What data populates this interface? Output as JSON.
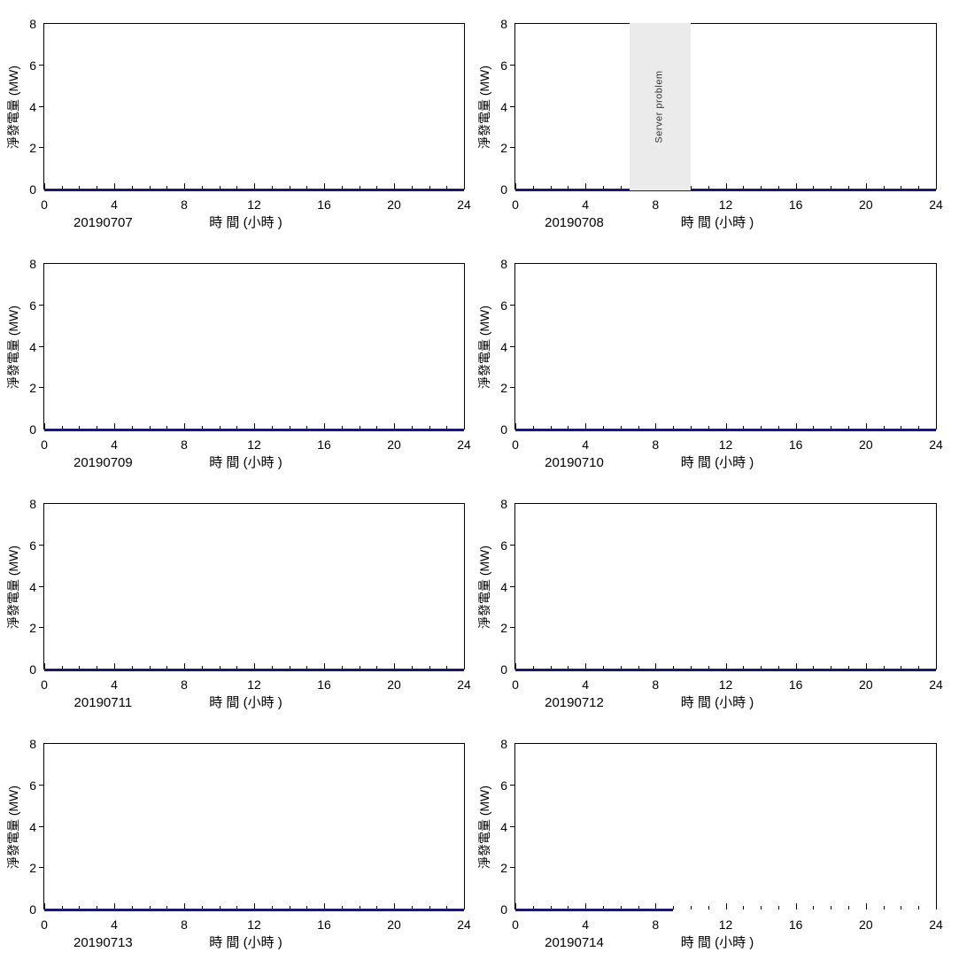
{
  "chart_data": {
    "type": "line",
    "layout": "4x2-grid-of-daily-charts",
    "shared": {
      "xlabel": "時 間 (小時 )",
      "ylabel": "淨發電量 (MW)",
      "xlim": [
        0,
        24
      ],
      "ylim": [
        0,
        8
      ],
      "x_major_ticks": [
        0,
        4,
        8,
        12,
        16,
        20,
        24
      ],
      "x_minor_tick_step": 1,
      "y_ticks": [
        0,
        2,
        4,
        6,
        8
      ],
      "grid": false,
      "legend": "none",
      "series_name": "淨發電量",
      "line_color": "#191970",
      "band_color": "#ebebeb"
    },
    "charts": [
      {
        "date": "20190707",
        "x_span": [
          0,
          24
        ],
        "value_mw": 0,
        "annotation": null
      },
      {
        "date": "20190708",
        "x_span": [
          0,
          24
        ],
        "value_mw": 0,
        "annotation": {
          "type": "band",
          "x0": 6.5,
          "x1": 10,
          "label": "Server problem",
          "color": "#ebebeb"
        }
      },
      {
        "date": "20190709",
        "x_span": [
          0,
          24
        ],
        "value_mw": 0,
        "annotation": null
      },
      {
        "date": "20190710",
        "x_span": [
          0,
          24
        ],
        "value_mw": 0,
        "annotation": null
      },
      {
        "date": "20190711",
        "x_span": [
          0,
          24
        ],
        "value_mw": 0,
        "annotation": null
      },
      {
        "date": "20190712",
        "x_span": [
          0,
          24
        ],
        "value_mw": 0,
        "annotation": null
      },
      {
        "date": "20190713",
        "x_span": [
          0,
          24
        ],
        "value_mw": 0,
        "annotation": null
      },
      {
        "date": "20190714",
        "x_span": [
          0,
          9
        ],
        "value_mw": 0,
        "annotation": null
      }
    ]
  }
}
